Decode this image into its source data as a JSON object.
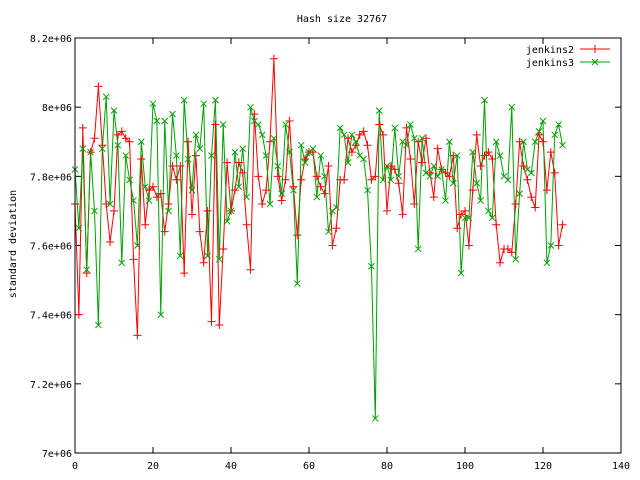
{
  "chart_data": {
    "type": "line",
    "title": "Hash size 32767",
    "xlabel": "",
    "ylabel": "standard deviation",
    "xlim": [
      0,
      140
    ],
    "ylim": [
      7000000,
      8200000
    ],
    "xticks": [
      0,
      20,
      40,
      60,
      80,
      100,
      120,
      140
    ],
    "xtick_labels": [
      "0",
      "20",
      "40",
      "60",
      "80",
      "100",
      "120",
      "140"
    ],
    "yticks": [
      7000000,
      7200000,
      7400000,
      7600000,
      7800000,
      8000000,
      8200000
    ],
    "ytick_labels": [
      "7e+06",
      "7.2e+06",
      "7.4e+06",
      "7.6e+06",
      "7.8e+06",
      "8e+06",
      "8.2e+06"
    ],
    "grid": false,
    "legend_position": "top-right",
    "series": [
      {
        "name": "jenkins2",
        "color": "#ff0000",
        "marker": "plus",
        "x": [
          0,
          1,
          2,
          3,
          4,
          5,
          6,
          7,
          8,
          9,
          10,
          11,
          12,
          13,
          14,
          15,
          16,
          17,
          18,
          19,
          20,
          21,
          22,
          23,
          24,
          25,
          26,
          27,
          28,
          29,
          30,
          31,
          32,
          33,
          34,
          35,
          36,
          37,
          38,
          39,
          40,
          41,
          42,
          43,
          44,
          45,
          46,
          47,
          48,
          49,
          50,
          51,
          52,
          53,
          54,
          55,
          56,
          57,
          58,
          59,
          60,
          61,
          62,
          63,
          64,
          65,
          66,
          67,
          68,
          69,
          70,
          71,
          72,
          73,
          74,
          75,
          76,
          77,
          78,
          79,
          80,
          81,
          82,
          83,
          84,
          85,
          86,
          87,
          88,
          89,
          90,
          91,
          92,
          93,
          94,
          95,
          96,
          97,
          98,
          99,
          100,
          101,
          102,
          103,
          104,
          105,
          106,
          107,
          108,
          109,
          110,
          111,
          112,
          113,
          114,
          115,
          116,
          117,
          118,
          119,
          120,
          121,
          122,
          123,
          124,
          125
        ],
        "y": [
          7720000,
          7400000,
          7940000,
          7520000,
          7870000,
          7910000,
          8060000,
          7890000,
          7720000,
          7610000,
          7700000,
          7920000,
          7930000,
          7910000,
          7900000,
          7560000,
          7340000,
          7850000,
          7660000,
          7760000,
          7770000,
          7740000,
          7750000,
          7640000,
          7720000,
          7830000,
          7790000,
          7830000,
          7520000,
          7900000,
          7690000,
          7860000,
          7640000,
          7550000,
          7700000,
          7380000,
          7950000,
          7370000,
          7590000,
          7840000,
          7700000,
          7760000,
          7840000,
          7810000,
          7660000,
          7530000,
          7980000,
          7800000,
          7720000,
          7760000,
          7900000,
          8140000,
          7800000,
          7730000,
          7790000,
          7960000,
          7770000,
          7630000,
          7790000,
          7850000,
          7870000,
          7870000,
          7800000,
          7770000,
          7750000,
          7830000,
          7600000,
          7650000,
          7790000,
          7790000,
          7910000,
          7870000,
          7890000,
          7920000,
          7930000,
          7890000,
          7790000,
          7800000,
          7950000,
          7920000,
          7700000,
          7830000,
          7820000,
          7780000,
          7690000,
          7940000,
          7850000,
          7720000,
          7900000,
          7840000,
          7910000,
          7810000,
          7740000,
          7880000,
          7820000,
          7810000,
          7800000,
          7860000,
          7650000,
          7690000,
          7700000,
          7600000,
          7760000,
          7920000,
          7830000,
          7860000,
          7870000,
          7850000,
          7660000,
          7550000,
          7590000,
          7590000,
          7580000,
          7720000,
          7900000,
          7830000,
          7790000,
          7740000,
          7710000,
          7920000,
          7900000,
          7760000,
          7870000,
          7810000,
          7600000,
          7660000
        ]
      },
      {
        "name": "jenkins3",
        "color": "#00a000",
        "marker": "cross",
        "x": [
          0,
          1,
          2,
          3,
          4,
          5,
          6,
          7,
          8,
          9,
          10,
          11,
          12,
          13,
          14,
          15,
          16,
          17,
          18,
          19,
          20,
          21,
          22,
          23,
          24,
          25,
          26,
          27,
          28,
          29,
          30,
          31,
          32,
          33,
          34,
          35,
          36,
          37,
          38,
          39,
          40,
          41,
          42,
          43,
          44,
          45,
          46,
          47,
          48,
          49,
          50,
          51,
          52,
          53,
          54,
          55,
          56,
          57,
          58,
          59,
          60,
          61,
          62,
          63,
          64,
          65,
          66,
          67,
          68,
          69,
          70,
          71,
          72,
          73,
          74,
          75,
          76,
          77,
          78,
          79,
          80,
          81,
          82,
          83,
          84,
          85,
          86,
          87,
          88,
          89,
          90,
          91,
          92,
          93,
          94,
          95,
          96,
          97,
          98,
          99,
          100,
          101,
          102,
          103,
          104,
          105,
          106,
          107,
          108,
          109,
          110,
          111,
          112,
          113,
          114,
          115,
          116,
          117,
          118,
          119,
          120,
          121,
          122,
          123,
          124,
          125
        ],
        "y": [
          7820000,
          7650000,
          7880000,
          7530000,
          7870000,
          7700000,
          7370000,
          7880000,
          8030000,
          7720000,
          7990000,
          7890000,
          7550000,
          7860000,
          7790000,
          7730000,
          7600000,
          7900000,
          7770000,
          7730000,
          8010000,
          7960000,
          7400000,
          7960000,
          7700000,
          7980000,
          7860000,
          7570000,
          8020000,
          7850000,
          7760000,
          7920000,
          7880000,
          8010000,
          7570000,
          7860000,
          8020000,
          7560000,
          7950000,
          7670000,
          7700000,
          7870000,
          7770000,
          7880000,
          7740000,
          8000000,
          7960000,
          7950000,
          7920000,
          7860000,
          7720000,
          7910000,
          7830000,
          7750000,
          7950000,
          7870000,
          7760000,
          7490000,
          7890000,
          7840000,
          7870000,
          7880000,
          7740000,
          7860000,
          7800000,
          7640000,
          7700000,
          7710000,
          7940000,
          7920000,
          7840000,
          7920000,
          7900000,
          7860000,
          7850000,
          7760000,
          7540000,
          7100000,
          7990000,
          7790000,
          7830000,
          7790000,
          7940000,
          7800000,
          7900000,
          7890000,
          7950000,
          7910000,
          7590000,
          7910000,
          7810000,
          7800000,
          7830000,
          7800000,
          7820000,
          7730000,
          7900000,
          7780000,
          7860000,
          7520000,
          7680000,
          7680000,
          7870000,
          7780000,
          7730000,
          8020000,
          7700000,
          7680000,
          7900000,
          7860000,
          7800000,
          7790000,
          8000000,
          7560000,
          7750000,
          7900000,
          7820000,
          7810000,
          7900000,
          7930000,
          7960000,
          7550000,
          7600000,
          7920000,
          7950000,
          7890000
        ]
      }
    ]
  }
}
